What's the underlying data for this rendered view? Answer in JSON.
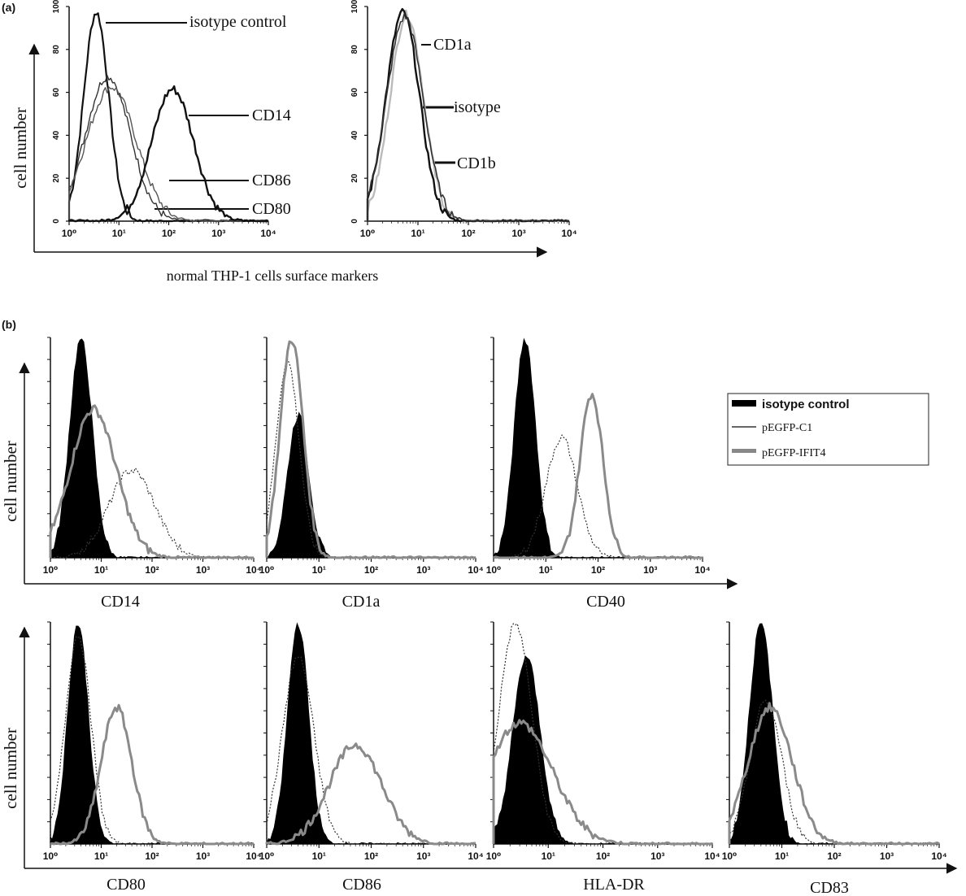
{
  "figure": {
    "panel_a_label": "(a)",
    "panel_b_label": "(b)",
    "y_axis_label": "cell number",
    "panel_a_xlabel": "normal THP-1 cells surface markers"
  },
  "chart_data": [
    {
      "id": "a1",
      "type": "line",
      "scale": "log",
      "xlim": [
        1,
        10000
      ],
      "ylim": [
        0,
        100
      ],
      "x_ticks": [
        "10⁰",
        "10¹",
        "10²",
        "10³",
        "10⁴"
      ],
      "y_ticks": [
        "0",
        "20",
        "40",
        "60",
        "80",
        "100"
      ],
      "annotations": [
        "isotype control",
        "CD14",
        "CD86",
        "CD80"
      ],
      "series": [
        {
          "name": "isotype control",
          "color": "#111111",
          "width": 2.2,
          "peak": 3.5,
          "sigma": 0.25,
          "height": 98
        },
        {
          "name": "CD80",
          "color": "#333333",
          "width": 1.4,
          "peak": 6,
          "sigma": 0.45,
          "height": 68
        },
        {
          "name": "CD86",
          "color": "#555555",
          "width": 1.4,
          "peak": 7,
          "sigma": 0.5,
          "height": 63
        },
        {
          "name": "CD14",
          "color": "#111111",
          "width": 2.4,
          "peak": 120,
          "sigma": 0.42,
          "height": 62
        }
      ]
    },
    {
      "id": "a2",
      "type": "line",
      "scale": "log",
      "xlim": [
        1,
        10000
      ],
      "ylim": [
        0,
        100
      ],
      "x_ticks": [
        "10⁰",
        "10¹",
        "10²",
        "10³",
        "10⁴"
      ],
      "y_ticks": [
        "0",
        "20",
        "40",
        "60",
        "80",
        "100"
      ],
      "annotations": [
        "CD1a",
        "isotype",
        "CD1b"
      ],
      "series": [
        {
          "name": "CD1a",
          "color": "#bbbbbb",
          "width": 2.4,
          "peak": 6,
          "sigma": 0.33,
          "height": 97
        },
        {
          "name": "isotype",
          "color": "#111111",
          "width": 2.4,
          "peak": 5,
          "sigma": 0.33,
          "height": 98
        },
        {
          "name": "CD1b",
          "color": "#333333",
          "width": 1.6,
          "peak": 5.5,
          "sigma": 0.36,
          "height": 96
        }
      ]
    },
    {
      "id": "b-CD14",
      "type": "area",
      "scale": "log",
      "xlim": [
        1,
        10000
      ],
      "x_ticks": [
        "10⁰",
        "10¹",
        "10²",
        "10³",
        "10⁴"
      ],
      "xlabel": "CD14",
      "series": [
        {
          "name": "isotype control",
          "peak": 4,
          "sigma": 0.22,
          "height": 100
        },
        {
          "name": "pEGFP-C1",
          "peak": 40,
          "sigma": 0.45,
          "height": 40
        },
        {
          "name": "pEGFP-IFIT4",
          "peak": 7,
          "sigma": 0.45,
          "height": 68
        }
      ]
    },
    {
      "id": "b-CD1a",
      "type": "area",
      "scale": "log",
      "xlim": [
        1,
        10000
      ],
      "x_ticks": [
        "10⁰",
        "10¹",
        "10²",
        "10³",
        "10⁴"
      ],
      "xlabel": "CD1a",
      "series": [
        {
          "name": "isotype control",
          "peak": 4,
          "sigma": 0.2,
          "height": 65
        },
        {
          "name": "pEGFP-C1",
          "peak": 2.5,
          "sigma": 0.22,
          "height": 90
        },
        {
          "name": "pEGFP-IFIT4",
          "peak": 3,
          "sigma": 0.22,
          "height": 100
        }
      ]
    },
    {
      "id": "b-CD40",
      "type": "area",
      "scale": "log",
      "xlim": [
        1,
        10000
      ],
      "x_ticks": [
        "10⁰",
        "10¹",
        "10²",
        "10³",
        "10⁴"
      ],
      "xlabel": "CD40",
      "series": [
        {
          "name": "isotype control",
          "peak": 4,
          "sigma": 0.2,
          "height": 100
        },
        {
          "name": "pEGFP-C1",
          "peak": 20,
          "sigma": 0.3,
          "height": 55
        },
        {
          "name": "pEGFP-IFIT4",
          "peak": 75,
          "sigma": 0.22,
          "height": 75
        }
      ]
    },
    {
      "id": "b-CD80",
      "type": "area",
      "scale": "log",
      "xlim": [
        1,
        10000
      ],
      "x_ticks": [
        "10⁰",
        "10¹",
        "10²",
        "10³",
        "10⁴"
      ],
      "xlabel": "CD80",
      "series": [
        {
          "name": "isotype control",
          "peak": 3.5,
          "sigma": 0.2,
          "height": 100
        },
        {
          "name": "pEGFP-C1",
          "peak": 3.5,
          "sigma": 0.25,
          "height": 95
        },
        {
          "name": "pEGFP-IFIT4",
          "peak": 20,
          "sigma": 0.3,
          "height": 62
        }
      ]
    },
    {
      "id": "b-CD86",
      "type": "area",
      "scale": "log",
      "xlim": [
        1,
        10000
      ],
      "x_ticks": [
        "10⁰",
        "10¹",
        "10²",
        "10³",
        "10⁴"
      ],
      "xlabel": "CD86",
      "series": [
        {
          "name": "isotype control",
          "peak": 4,
          "sigma": 0.2,
          "height": 100
        },
        {
          "name": "pEGFP-C1",
          "peak": 4,
          "sigma": 0.3,
          "height": 85
        },
        {
          "name": "pEGFP-IFIT4",
          "peak": 50,
          "sigma": 0.5,
          "height": 45
        }
      ]
    },
    {
      "id": "b-HLA-DR",
      "type": "area",
      "scale": "log",
      "xlim": [
        1,
        10000
      ],
      "x_ticks": [
        "10⁰",
        "10¹",
        "10²",
        "10³",
        "10⁴"
      ],
      "xlabel": "HLA-DR",
      "series": [
        {
          "name": "isotype control",
          "peak": 4,
          "sigma": 0.25,
          "height": 85
        },
        {
          "name": "pEGFP-C1",
          "peak": 2.5,
          "sigma": 0.3,
          "height": 100
        },
        {
          "name": "pEGFP-IFIT4",
          "peak": 3,
          "sigma": 0.6,
          "height": 55
        }
      ]
    },
    {
      "id": "b-CD83",
      "type": "area",
      "scale": "log",
      "xlim": [
        1,
        10000
      ],
      "x_ticks": [
        "10⁰",
        "10¹",
        "10²",
        "10³",
        "10⁴"
      ],
      "xlabel": "CD83",
      "series": [
        {
          "name": "isotype control",
          "peak": 4,
          "sigma": 0.22,
          "height": 100
        },
        {
          "name": "pEGFP-C1",
          "peak": 5,
          "sigma": 0.3,
          "height": 65
        },
        {
          "name": "pEGFP-IFIT4",
          "peak": 6,
          "sigma": 0.42,
          "height": 62
        }
      ]
    }
  ],
  "legend": {
    "items": [
      {
        "label": "isotype control",
        "color": "#000000"
      },
      {
        "label": "pEGFP-C1",
        "color": "#333333"
      },
      {
        "label": "pEGFP-IFIT4",
        "color": "#888888"
      }
    ]
  }
}
